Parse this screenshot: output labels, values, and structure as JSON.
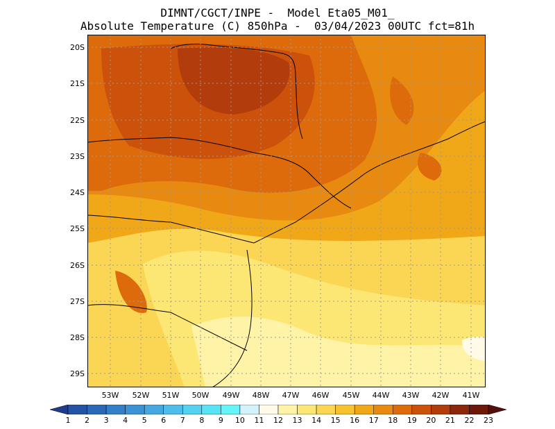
{
  "title": {
    "line1": "DIMNT/CGCT/INPE -  Model Eta05_M01_",
    "line2": "Absolute Temperature (C) 850hPa -  03/04/2023 00UTC fct=81h"
  },
  "map": {
    "lat_labels": [
      "20S",
      "21S",
      "22S",
      "23S",
      "24S",
      "25S",
      "26S",
      "27S",
      "28S",
      "29S"
    ],
    "lon_labels": [
      "53W",
      "52W",
      "51W",
      "50W",
      "49W",
      "48W",
      "47W",
      "46W",
      "45W",
      "44W",
      "43W",
      "42W",
      "41W"
    ],
    "extent": {
      "lon_min": -53.8,
      "lon_max": -40.5,
      "lat_min": -29.4,
      "lat_max": -19.7
    },
    "field": "850hPa temperature (C)"
  },
  "colorbar": {
    "labels": [
      "1",
      "2",
      "3",
      "4",
      "5",
      "6",
      "7",
      "8",
      "9",
      "10",
      "11",
      "12",
      "13",
      "14",
      "15",
      "16",
      "17",
      "18",
      "19",
      "20",
      "21",
      "22",
      "23"
    ],
    "colors": [
      "#1f3b8c",
      "#2452a4",
      "#2a68b8",
      "#337fc8",
      "#3b93d5",
      "#46a8e0",
      "#4fbde9",
      "#54d2ef",
      "#58e4f4",
      "#66f4f8",
      "#d4f2fa",
      "#fffbe8",
      "#fff3a8",
      "#fde774",
      "#fbd654",
      "#f7c12f",
      "#f0a718",
      "#e88a0f",
      "#de6b0b",
      "#cc510a",
      "#b23c0b",
      "#8c270b",
      "#6e1809",
      "#540e0c"
    ]
  }
}
